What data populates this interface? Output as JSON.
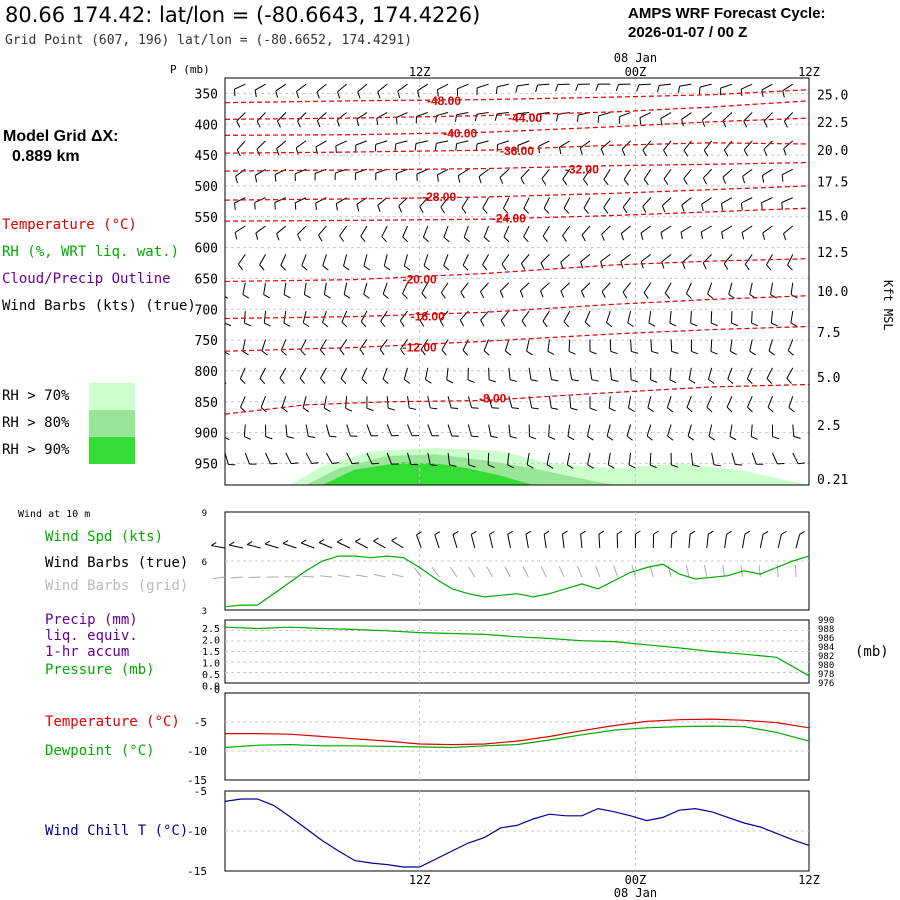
{
  "header": {
    "location_title": "80.66 174.42:  lat/lon = (-80.6643, 174.4226)",
    "grid_point": "Grid Point (607, 196) lat/lon = (-80.6652, 174.4291)",
    "forecast_cycle_label": "AMPS WRF Forecast Cycle:",
    "forecast_cycle_value": "2026-01-07 / 00  Z"
  },
  "sidebar": {
    "model_grid_label": "Model Grid ΔX:",
    "model_grid_value": "0.889 km",
    "legend": {
      "temperature": "Temperature (°C)",
      "rh": "RH (%, WRT liq. wat.)",
      "cloud": "Cloud/Precip Outline",
      "wind": "Wind Barbs (kts) (true)"
    },
    "rh_legend": [
      {
        "label": "RH > 70%",
        "color": "#ccffcc"
      },
      {
        "label": "RH > 80%",
        "color": "#99e699"
      },
      {
        "label": "RH > 90%",
        "color": "#33dd33"
      }
    ]
  },
  "time_axis": {
    "top_labels": [
      "12Z",
      "00Z",
      "12Z"
    ],
    "date_label": "08 Jan",
    "bottom_labels": [
      "12Z",
      "00Z",
      "12Z"
    ]
  },
  "colors": {
    "temperature": "#dd0000",
    "rh": "#00aa00",
    "cloud": "#660099",
    "windchill": "#000099",
    "grid": "#aaaaaa",
    "rh70": "#ccffcc",
    "rh80": "#99e699",
    "rh90": "#33dd33",
    "barb_true": "#000000",
    "barb_grid": "#aaaaaa"
  },
  "chart_data": [
    {
      "type": "line",
      "panel": "profile",
      "ylabel_left": "P (mb)",
      "ylabel_right": "Kft MSL",
      "pressure_ticks": [
        350,
        400,
        450,
        500,
        550,
        600,
        650,
        700,
        750,
        800,
        850,
        900,
        950
      ],
      "height_ticks": [
        "25.0",
        "22.5",
        "20.0",
        "17.5",
        "15.0",
        "12.5",
        "10.0",
        "7.5",
        "5.0",
        "2.5",
        "0.21"
      ],
      "height_tick_pressures": [
        352,
        396,
        442,
        493,
        548,
        607,
        670,
        737,
        810,
        888,
        975
      ],
      "plim": [
        325,
        985
      ],
      "xlim": [
        0,
        36
      ],
      "isotherms": [
        {
          "label": "-48.00",
          "points": [
            [
              0,
              365
            ],
            [
              8,
              362
            ],
            [
              16,
              360
            ],
            [
              24,
              356
            ],
            [
              30,
              352
            ],
            [
              36,
              344
            ]
          ]
        },
        {
          "label": "-44.00",
          "points": [
            [
              0,
              392
            ],
            [
              8,
              390
            ],
            [
              16,
              386
            ],
            [
              24,
              380
            ],
            [
              30,
              372
            ],
            [
              36,
              362
            ]
          ]
        },
        {
          "label": "-40.00",
          "points": [
            [
              0,
              418
            ],
            [
              8,
              417
            ],
            [
              16,
              413
            ],
            [
              24,
              404
            ],
            [
              30,
              396
            ],
            [
              36,
              390
            ]
          ]
        },
        {
          "label": "-36.00",
          "points": [
            [
              0,
              447
            ],
            [
              8,
              445
            ],
            [
              16,
              442
            ],
            [
              24,
              434
            ],
            [
              30,
              430
            ],
            [
              36,
              432
            ]
          ]
        },
        {
          "label": "-32.00",
          "points": [
            [
              0,
              476
            ],
            [
              8,
              474
            ],
            [
              16,
              472
            ],
            [
              24,
              467
            ],
            [
              30,
              465
            ],
            [
              36,
              462
            ]
          ]
        },
        {
          "label": "-28.00",
          "points": [
            [
              0,
              523
            ],
            [
              8,
              521
            ],
            [
              16,
              518
            ],
            [
              24,
              512
            ],
            [
              30,
              506
            ],
            [
              36,
              500
            ]
          ]
        },
        {
          "label": "-24.00",
          "points": [
            [
              0,
              557
            ],
            [
              8,
              556
            ],
            [
              16,
              554
            ],
            [
              24,
              548
            ],
            [
              30,
              542
            ],
            [
              36,
              536
            ]
          ]
        },
        {
          "label": "-20.00",
          "points": [
            [
              0,
              655
            ],
            [
              8,
              652
            ],
            [
              16,
              642
            ],
            [
              24,
              628
            ],
            [
              30,
              622
            ],
            [
              36,
              618
            ]
          ]
        },
        {
          "label": "-16.00",
          "points": [
            [
              0,
              715
            ],
            [
              8,
              712
            ],
            [
              16,
              705
            ],
            [
              24,
              692
            ],
            [
              30,
              684
            ],
            [
              36,
              678
            ]
          ]
        },
        {
          "label": "-12.00",
          "points": [
            [
              0,
              768
            ],
            [
              8,
              762
            ],
            [
              16,
              752
            ],
            [
              24,
              740
            ],
            [
              30,
              733
            ],
            [
              36,
              728
            ]
          ]
        },
        {
          "label": "-8.00",
          "points": [
            [
              0,
              870
            ],
            [
              5,
              855
            ],
            [
              10,
              850
            ],
            [
              16,
              848
            ],
            [
              22,
              838
            ],
            [
              30,
              826
            ],
            [
              36,
              822
            ]
          ]
        }
      ],
      "isotherm_label_positions": [
        [
          13.5,
          362
        ],
        [
          18.5,
          390
        ],
        [
          14.5,
          415
        ],
        [
          18,
          443
        ],
        [
          22,
          473
        ],
        [
          13.2,
          518
        ],
        [
          17.5,
          553
        ],
        [
          12,
          652
        ],
        [
          12.5,
          712
        ],
        [
          12,
          762
        ],
        [
          16.5,
          845
        ]
      ],
      "rh_regions": [
        {
          "level": 70,
          "points": [
            [
              4,
              985
            ],
            [
              6,
              955
            ],
            [
              9,
              930
            ],
            [
              13,
              925
            ],
            [
              17,
              930
            ],
            [
              20,
              950
            ],
            [
              24,
              958
            ],
            [
              28,
              950
            ],
            [
              32,
              962
            ],
            [
              36,
              985
            ]
          ]
        },
        {
          "level": 80,
          "points": [
            [
              5,
              985
            ],
            [
              7,
              958
            ],
            [
              10,
              938
            ],
            [
              13,
              935
            ],
            [
              16,
              945
            ],
            [
              19,
              958
            ],
            [
              22,
              975
            ],
            [
              24,
              985
            ]
          ]
        },
        {
          "level": 90,
          "points": [
            [
              6,
              985
            ],
            [
              8,
              960
            ],
            [
              11,
              948
            ],
            [
              13,
              950
            ],
            [
              15,
              958
            ],
            [
              17,
              970
            ],
            [
              19,
              985
            ]
          ]
        }
      ]
    },
    {
      "type": "line",
      "panel": "wind10m",
      "title": "Wind at 10 m",
      "series_label": "Wind Spd (kts)",
      "barbs_true_label": "Wind Barbs (true)",
      "barbs_grid_label": "Wind Barbs (grid)",
      "ylim": [
        3,
        9
      ],
      "yticks": [
        3,
        6,
        9
      ],
      "x": [
        0,
        1,
        2,
        3,
        4,
        5,
        6,
        7,
        8,
        9,
        10,
        11,
        12,
        13,
        14,
        15,
        16,
        17,
        18,
        19,
        20,
        21,
        22,
        23,
        24,
        25,
        26,
        27,
        28,
        29,
        30,
        31,
        32,
        33,
        34,
        35,
        36
      ],
      "values": [
        3.2,
        3.3,
        3.3,
        4.0,
        4.7,
        5.4,
        6.0,
        6.3,
        6.3,
        6.2,
        6.3,
        6.2,
        5.6,
        4.9,
        4.3,
        4.0,
        3.8,
        3.9,
        4.0,
        3.8,
        4.0,
        4.3,
        4.6,
        4.3,
        4.8,
        5.3,
        5.6,
        5.8,
        5.2,
        4.9,
        5.0,
        5.1,
        5.4,
        5.2,
        5.6,
        6.0,
        6.3
      ]
    },
    {
      "type": "line",
      "panel": "precip_pressure",
      "precip_label": "Precip (mm)",
      "precip_label2": "liq. equiv.",
      "precip_label3": "1-hr accum",
      "pressure_label": "Pressure (mb)",
      "pressure_unit": "(mb)",
      "precip_ticks": [
        "2.5",
        "2.0",
        "1.5",
        "1.0",
        "0.5",
        "0.0"
      ],
      "pressure_ticks": [
        "990",
        "988",
        "986",
        "984",
        "982",
        "980",
        "978",
        "976"
      ],
      "pressure_ylim": [
        976,
        990
      ],
      "x": [
        0,
        2,
        4,
        6,
        8,
        10,
        12,
        14,
        16,
        18,
        20,
        22,
        24,
        26,
        28,
        30,
        32,
        34,
        36
      ],
      "pressure": [
        988.4,
        988.1,
        988.4,
        988.1,
        987.9,
        987.6,
        987.2,
        987.0,
        986.8,
        986.3,
        985.9,
        985.4,
        985.2,
        984.5,
        983.8,
        983.0,
        982.4,
        981.7,
        977.6
      ],
      "precip": [
        0,
        0,
        0,
        0,
        0,
        0,
        0,
        0,
        0,
        0,
        0,
        0,
        0,
        0,
        0,
        0,
        0,
        0,
        0
      ]
    },
    {
      "type": "line",
      "panel": "temp_dewpoint",
      "temperature_label": "Temperature (°C)",
      "dewpoint_label": "Dewpoint (°C)",
      "ylim": [
        -15,
        0
      ],
      "yticks": [
        "-5",
        "-10",
        "-15"
      ],
      "x": [
        0,
        2,
        4,
        6,
        8,
        10,
        12,
        14,
        16,
        18,
        20,
        22,
        24,
        26,
        28,
        30,
        32,
        34,
        36
      ],
      "temperature": [
        -7.0,
        -7.0,
        -7.1,
        -7.5,
        -7.9,
        -8.3,
        -8.8,
        -8.9,
        -8.8,
        -8.3,
        -7.5,
        -6.5,
        -5.6,
        -4.9,
        -4.6,
        -4.5,
        -4.7,
        -5.1,
        -6.0
      ],
      "dewpoint": [
        -9.4,
        -9.0,
        -8.9,
        -9.1,
        -9.1,
        -9.2,
        -9.3,
        -9.4,
        -9.1,
        -8.9,
        -8.1,
        -7.2,
        -6.4,
        -6.0,
        -5.8,
        -5.7,
        -5.8,
        -6.8,
        -8.3
      ]
    },
    {
      "type": "line",
      "panel": "windchill",
      "series_label": "Wind Chill T (°C)",
      "ylim": [
        -15,
        -5
      ],
      "yticks": [
        "-5",
        "-10",
        "-15"
      ],
      "x": [
        0,
        1,
        2,
        3,
        4,
        5,
        6,
        7,
        8,
        9,
        10,
        11,
        12,
        13,
        14,
        15,
        16,
        17,
        18,
        19,
        20,
        21,
        22,
        23,
        24,
        25,
        26,
        27,
        28,
        29,
        30,
        31,
        32,
        33,
        34,
        35,
        36
      ],
      "values": [
        -6.3,
        -6.0,
        -6.0,
        -6.8,
        -8.2,
        -9.7,
        -11.2,
        -12.5,
        -13.7,
        -14.0,
        -14.2,
        -14.5,
        -14.5,
        -13.5,
        -12.5,
        -11.5,
        -10.8,
        -9.6,
        -9.3,
        -8.5,
        -7.9,
        -8.1,
        -8.1,
        -7.2,
        -7.6,
        -8.1,
        -8.7,
        -8.3,
        -7.4,
        -7.2,
        -7.6,
        -8.3,
        -9.0,
        -9.5,
        -10.3,
        -11.1,
        -11.8
      ]
    }
  ]
}
